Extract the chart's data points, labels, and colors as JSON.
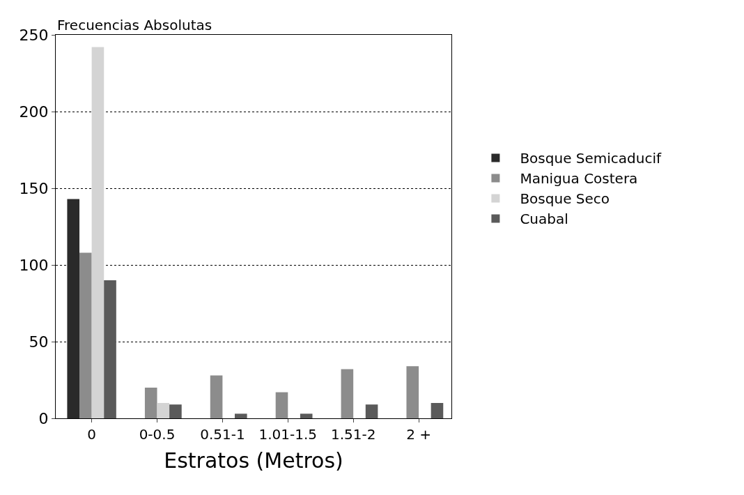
{
  "chart_data": {
    "type": "bar",
    "ylabel": "Frecuencias Absolutas",
    "xlabel": "Estratos (Metros)",
    "categories": [
      "0",
      "0-0.5",
      "0.51-1",
      "1.01-1.5",
      "1.51-2",
      "2 +"
    ],
    "series": [
      {
        "name": "Bosque Semicaducif",
        "color": "#2a2a2a",
        "values": [
          143,
          0,
          0,
          0,
          0,
          0
        ]
      },
      {
        "name": "Manigua Costera",
        "color": "#8c8c8c",
        "values": [
          108,
          20,
          28,
          17,
          32,
          34
        ]
      },
      {
        "name": "Bosque Seco",
        "color": "#d4d4d4",
        "values": [
          242,
          10,
          0,
          0,
          0,
          0
        ]
      },
      {
        "name": "Cuabal",
        "color": "#5a5a5a",
        "values": [
          90,
          9,
          3,
          3,
          9,
          10
        ]
      }
    ],
    "ylim": [
      0,
      250
    ],
    "yticks": [
      0,
      50,
      100,
      150,
      200,
      250
    ],
    "grid": "y",
    "legend": "right"
  }
}
